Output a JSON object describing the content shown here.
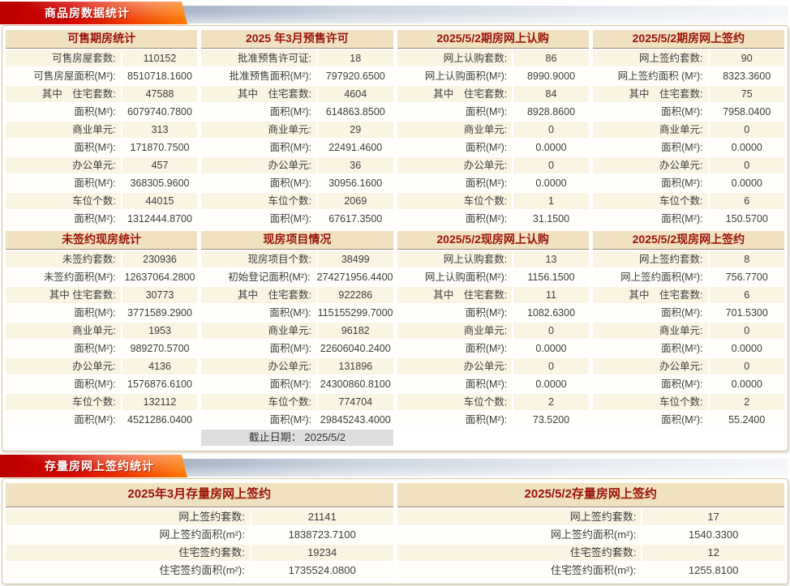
{
  "colors": {
    "ribbon_red": "#cc0000",
    "ribbon_orange": "#ff7c00",
    "banner_track_gray": "#a9b6c7",
    "table_header_bg": "#f0e2c1",
    "table_header_text": "#9a1208",
    "row_odd_bg": "#faf4e2",
    "footer_row_bg": "#dedede",
    "panel_border": "#d6c59c",
    "body_text": "#3c3c3c"
  },
  "sections": [
    {
      "banner": "商品房数据统计",
      "groups": [
        {
          "tables": [
            {
              "title": "可售期房统计",
              "rows": [
                {
                  "label": "可售房屋套数:",
                  "value": "110152"
                },
                {
                  "label": "可售房屋面积(M²):",
                  "value": "8510718.1600"
                },
                {
                  "label": "其中　住宅套数:",
                  "value": "47588"
                },
                {
                  "label": "面积(M²):",
                  "value": "6079740.7800"
                },
                {
                  "label": "商业单元:",
                  "value": "313"
                },
                {
                  "label": "面积(M²):",
                  "value": "171870.7500"
                },
                {
                  "label": "办公单元:",
                  "value": "457"
                },
                {
                  "label": "面积(M²):",
                  "value": "368305.9600"
                },
                {
                  "label": "车位个数:",
                  "value": "44015"
                },
                {
                  "label": "面积(M²):",
                  "value": "1312444.8700"
                }
              ]
            },
            {
              "title": "2025 年3月预售许可",
              "rows": [
                {
                  "label": "批准预售许可证:",
                  "value": "18"
                },
                {
                  "label": "批准预售面积(M²):",
                  "value": "797920.6500"
                },
                {
                  "label": "其中　住宅套数:",
                  "value": "4604"
                },
                {
                  "label": "面积(M²):",
                  "value": "614863.8500"
                },
                {
                  "label": "商业单元:",
                  "value": "29"
                },
                {
                  "label": "面积(M²):",
                  "value": "22491.4600"
                },
                {
                  "label": "办公单元:",
                  "value": "36"
                },
                {
                  "label": "面积(M²):",
                  "value": "30956.1600"
                },
                {
                  "label": "车位个数:",
                  "value": "2069"
                },
                {
                  "label": "面积(M²):",
                  "value": "67617.3500"
                }
              ]
            },
            {
              "title": "2025/5/2期房网上认购",
              "rows": [
                {
                  "label": "网上认购套数:",
                  "value": "86"
                },
                {
                  "label": "网上认购面积(M²):",
                  "value": "8990.9000"
                },
                {
                  "label": "其中　住宅套数:",
                  "value": "84"
                },
                {
                  "label": "面积(M²):",
                  "value": "8928.8600"
                },
                {
                  "label": "商业单元:",
                  "value": "0"
                },
                {
                  "label": "面积(M²):",
                  "value": "0.0000"
                },
                {
                  "label": "办公单元:",
                  "value": "0"
                },
                {
                  "label": "面积(M²):",
                  "value": "0.0000"
                },
                {
                  "label": "车位个数:",
                  "value": "1"
                },
                {
                  "label": "面积(M²):",
                  "value": "31.1500"
                }
              ]
            },
            {
              "title": "2025/5/2期房网上签约",
              "rows": [
                {
                  "label": "网上签约套数:",
                  "value": "90"
                },
                {
                  "label": "网上签约面积 (M²):",
                  "value": "8323.3600"
                },
                {
                  "label": "其中　住宅套数:",
                  "value": "75"
                },
                {
                  "label": "面积(M²):",
                  "value": "7958.0400"
                },
                {
                  "label": "商业单元:",
                  "value": "0"
                },
                {
                  "label": "面积(M²):",
                  "value": "0.0000"
                },
                {
                  "label": "办公单元:",
                  "value": "0"
                },
                {
                  "label": "面积(M²):",
                  "value": "0.0000"
                },
                {
                  "label": "车位个数:",
                  "value": "6"
                },
                {
                  "label": "面积(M²):",
                  "value": "150.5700"
                }
              ]
            }
          ]
        },
        {
          "tables": [
            {
              "title": "未签约现房统计",
              "rows": [
                {
                  "label": "未签约套数:",
                  "value": "230936"
                },
                {
                  "label": "未签约面积(M²):",
                  "value": "12637064.2800"
                },
                {
                  "label": "其中 住宅套数:",
                  "value": "30773"
                },
                {
                  "label": "面积(M²):",
                  "value": "3771589.2900"
                },
                {
                  "label": "商业单元:",
                  "value": "1953"
                },
                {
                  "label": "面积(M²):",
                  "value": "989270.5700"
                },
                {
                  "label": "办公单元:",
                  "value": "4136"
                },
                {
                  "label": "面积(M²):",
                  "value": "1576876.6100"
                },
                {
                  "label": "车位个数:",
                  "value": "132112"
                },
                {
                  "label": "面积(M²):",
                  "value": "4521286.0400"
                }
              ]
            },
            {
              "title": "现房项目情况",
              "rows": [
                {
                  "label": "现房项目个数:",
                  "value": "38499"
                },
                {
                  "label": "初始登记面积(M²):",
                  "value": "274271956.4400"
                },
                {
                  "label": "其中　住宅套数:",
                  "value": "922286"
                },
                {
                  "label": "面积(M²):",
                  "value": "115155299.7000"
                },
                {
                  "label": "商业单元:",
                  "value": "96182"
                },
                {
                  "label": "面积(M²):",
                  "value": "22606040.2400"
                },
                {
                  "label": "办公单元:",
                  "value": "131896"
                },
                {
                  "label": "面积(M²):",
                  "value": "24300860.8100"
                },
                {
                  "label": "车位个数:",
                  "value": "774704"
                },
                {
                  "label": "面积(M²):",
                  "value": "29845243.4000"
                }
              ],
              "footer": "截止日期： 2025/5/2"
            },
            {
              "title": "2025/5/2现房网上认购",
              "rows": [
                {
                  "label": "网上认购套数:",
                  "value": "13"
                },
                {
                  "label": "网上认购面积(M²):",
                  "value": "1156.1500"
                },
                {
                  "label": "其中　住宅套数:",
                  "value": "11"
                },
                {
                  "label": "面积(M²):",
                  "value": "1082.6300"
                },
                {
                  "label": "商业单元:",
                  "value": "0"
                },
                {
                  "label": "面积(M²):",
                  "value": "0.0000"
                },
                {
                  "label": "办公单元:",
                  "value": "0"
                },
                {
                  "label": "面积(M²):",
                  "value": "0.0000"
                },
                {
                  "label": "车位个数:",
                  "value": "2"
                },
                {
                  "label": "面积(M²):",
                  "value": "73.5200"
                }
              ]
            },
            {
              "title": "2025/5/2现房网上签约",
              "rows": [
                {
                  "label": "网上签约套数:",
                  "value": "8"
                },
                {
                  "label": "网上签约面积(M²):",
                  "value": "756.7700"
                },
                {
                  "label": "其中　住宅套数:",
                  "value": "6"
                },
                {
                  "label": "面积(M²):",
                  "value": "701.5300"
                },
                {
                  "label": "商业单元:",
                  "value": "0"
                },
                {
                  "label": "面积(M²):",
                  "value": "0.0000"
                },
                {
                  "label": "办公单元:",
                  "value": "0"
                },
                {
                  "label": "面积(M²):",
                  "value": "0.0000"
                },
                {
                  "label": "车位个数:",
                  "value": "2"
                },
                {
                  "label": "面积(M²):",
                  "value": "55.2400"
                }
              ]
            }
          ]
        }
      ]
    },
    {
      "banner": "存量房网上签约统计",
      "groups": [
        {
          "tables": [
            {
              "title": "2025年3月存量房网上签约",
              "rows": [
                {
                  "label": "网上签约套数:",
                  "value": "21141"
                },
                {
                  "label": "网上签约面积(m²):",
                  "value": "1838723.7100"
                },
                {
                  "label": "住宅签约套数:",
                  "value": "19234"
                },
                {
                  "label": "住宅签约面积(m²):",
                  "value": "1735524.0800"
                }
              ]
            },
            {
              "title": "2025/5/2存量房网上签约",
              "rows": [
                {
                  "label": "网上签约套数:",
                  "value": "17"
                },
                {
                  "label": "网上签约面积(m²):",
                  "value": "1540.3300"
                },
                {
                  "label": "住宅签约套数:",
                  "value": "12"
                },
                {
                  "label": "住宅签约面积(m²):",
                  "value": "1255.8100"
                }
              ]
            }
          ]
        }
      ]
    }
  ]
}
